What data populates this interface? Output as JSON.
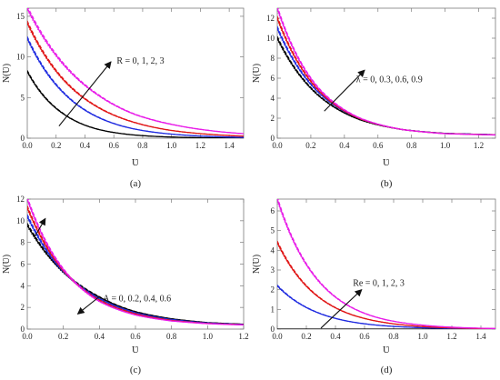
{
  "figure": {
    "colors": {
      "black": "#000000",
      "blue": "#1f2be0",
      "red": "#e01515",
      "magenta": "#e81ce8",
      "arrow": "#111111"
    }
  },
  "chart_data": [
    {
      "type": "line",
      "panel": "a",
      "caption": "(a)",
      "xlabel": "Ʋ",
      "ylabel": "N(Ʋ)",
      "xlim": [
        0,
        1.5
      ],
      "ylim": [
        0,
        16
      ],
      "xticks": [
        0.0,
        0.2,
        0.4,
        0.6,
        0.8,
        1.0,
        1.2,
        1.4
      ],
      "xtick_labels": [
        "0.0",
        "0.2",
        "0.4",
        "0.6",
        "0.8",
        "1.0",
        "1.2",
        "1.4"
      ],
      "yticks": [
        0,
        5,
        10,
        15
      ],
      "ytick_labels": [
        "0",
        "5",
        "10",
        "15"
      ],
      "annotation": "R = 0, 1, 2, 3",
      "arrow": {
        "from": [
          0.22,
          1.5
        ],
        "to": [
          0.58,
          9.4
        ]
      },
      "annotation_pos": [
        0.62,
        9.2
      ],
      "decay": [
        4.1,
        3.2,
        2.7,
        2.25
      ],
      "series": [
        {
          "color": "black",
          "x": [
            0,
            0.25,
            0.5,
            0.75,
            1.0,
            1.25,
            1.5
          ],
          "values": [
            8.2,
            3.0,
            1.05,
            0.38,
            0.14,
            0.05,
            0.02
          ]
        },
        {
          "color": "blue",
          "x": [
            0,
            0.25,
            0.5,
            0.75,
            1.0,
            1.25,
            1.5
          ],
          "values": [
            12.3,
            5.6,
            2.5,
            1.1,
            0.5,
            0.23,
            0.1
          ]
        },
        {
          "color": "red",
          "x": [
            0,
            0.25,
            0.5,
            0.75,
            1.0,
            1.25,
            1.5
          ],
          "values": [
            14.2,
            7.2,
            3.7,
            1.9,
            0.95,
            0.49,
            0.25
          ]
        },
        {
          "color": "magenta",
          "x": [
            0,
            0.25,
            0.5,
            0.75,
            1.0,
            1.25,
            1.5
          ],
          "values": [
            16.0,
            9.1,
            5.2,
            2.9,
            1.7,
            0.97,
            0.55
          ]
        }
      ]
    },
    {
      "type": "line",
      "panel": "b",
      "caption": "(b)",
      "xlabel": "Ʋ",
      "ylabel": "N(Ʋ)",
      "xlim": [
        0,
        1.3
      ],
      "ylim": [
        0,
        13
      ],
      "xticks": [
        0.0,
        0.2,
        0.4,
        0.6,
        0.8,
        1.0,
        1.2
      ],
      "xtick_labels": [
        "0.0",
        "0.2",
        "0.4",
        "0.6",
        "0.8",
        "1.0",
        "1.2"
      ],
      "yticks": [
        0,
        2,
        4,
        6,
        8,
        10,
        12
      ],
      "ytick_labels": [
        "0",
        "2",
        "4",
        "6",
        "8",
        "10",
        "12"
      ],
      "annotation": "λ = 0, 0.3, 0.6, 0.9",
      "arrow": {
        "from": [
          0.28,
          2.7
        ],
        "to": [
          0.52,
          6.8
        ]
      },
      "annotation_pos": [
        0.47,
        5.6
      ],
      "floor": 0.3,
      "decay": [
        3.6,
        3.85,
        4.05,
        4.25
      ],
      "series": [
        {
          "color": "black",
          "x": [
            0,
            0.25,
            0.5,
            0.75,
            1.0,
            1.3
          ],
          "values": [
            10.0,
            4.2,
            1.8,
            0.85,
            0.48,
            0.35
          ]
        },
        {
          "color": "blue",
          "x": [
            0,
            0.25,
            0.5,
            0.75,
            1.0,
            1.3
          ],
          "values": [
            11.0,
            4.5,
            1.9,
            0.85,
            0.47,
            0.34
          ]
        },
        {
          "color": "red",
          "x": [
            0,
            0.25,
            0.5,
            0.75,
            1.0,
            1.3
          ],
          "values": [
            12.0,
            4.7,
            1.9,
            0.85,
            0.46,
            0.33
          ]
        },
        {
          "color": "magenta",
          "x": [
            0,
            0.25,
            0.5,
            0.75,
            1.0,
            1.3
          ],
          "values": [
            13.0,
            4.9,
            1.95,
            0.85,
            0.45,
            0.32
          ]
        }
      ]
    },
    {
      "type": "line",
      "panel": "c",
      "caption": "(c)",
      "xlabel": "Ʋ",
      "ylabel": "N(Ʋ)",
      "xlim": [
        0,
        1.2
      ],
      "ylim": [
        0,
        12
      ],
      "xticks": [
        0.0,
        0.2,
        0.4,
        0.6,
        0.8,
        1.0,
        1.2
      ],
      "xtick_labels": [
        "0.0",
        "0.2",
        "0.4",
        "0.6",
        "0.8",
        "1.0",
        "1.2"
      ],
      "yticks": [
        0,
        2,
        4,
        6,
        8,
        10,
        12
      ],
      "ytick_labels": [
        "0",
        "2",
        "4",
        "6",
        "8",
        "10",
        "12"
      ],
      "annotation": "A = 0, 0.2, 0.4, 0.6",
      "arrows": [
        {
          "from": [
            0.04,
            8.5
          ],
          "to": [
            0.1,
            10.2
          ]
        },
        {
          "from": [
            0.4,
            3.0
          ],
          "to": [
            0.28,
            1.4
          ]
        }
      ],
      "annotation_pos": [
        0.42,
        2.55
      ],
      "floor": 0.3,
      "decay": [
        3.1,
        3.4,
        3.7,
        4.0
      ],
      "series": [
        {
          "color": "black",
          "x": [
            0,
            0.2,
            0.4,
            0.6,
            0.8,
            1.0,
            1.2
          ],
          "values": [
            9.6,
            5.25,
            2.95,
            1.6,
            0.95,
            0.6,
            0.45
          ]
        },
        {
          "color": "blue",
          "x": [
            0,
            0.2,
            0.4,
            0.6,
            0.8,
            1.0,
            1.2
          ],
          "values": [
            10.4,
            5.3,
            2.8,
            1.5,
            0.88,
            0.56,
            0.42
          ]
        },
        {
          "color": "red",
          "x": [
            0,
            0.2,
            0.4,
            0.6,
            0.8,
            1.0,
            1.2
          ],
          "values": [
            11.2,
            5.4,
            2.65,
            1.4,
            0.8,
            0.52,
            0.4
          ]
        },
        {
          "color": "magenta",
          "x": [
            0,
            0.2,
            0.4,
            0.6,
            0.8,
            1.0,
            1.2
          ],
          "values": [
            12.0,
            5.5,
            2.55,
            1.3,
            0.75,
            0.5,
            0.38
          ]
        }
      ]
    },
    {
      "type": "line",
      "panel": "d",
      "caption": "(d)",
      "xlabel": "Ʋ",
      "ylabel": "N(Ʋ)",
      "xlim": [
        0,
        1.5
      ],
      "ylim": [
        0,
        6.6
      ],
      "xticks": [
        0.0,
        0.2,
        0.4,
        0.6,
        0.8,
        1.0,
        1.2,
        1.4
      ],
      "xtick_labels": [
        "0.0",
        "0.2",
        "0.4",
        "0.6",
        "0.8",
        "1.0",
        "1.2",
        "1.4"
      ],
      "yticks": [
        0,
        1,
        2,
        3,
        4,
        5,
        6
      ],
      "ytick_labels": [
        "0",
        "1",
        "2",
        "3",
        "4",
        "5",
        "6"
      ],
      "annotation": "Re = 0, 1, 2, 3",
      "arrow": {
        "from": [
          0.3,
          0.05
        ],
        "to": [
          0.58,
          2.0
        ]
      },
      "annotation_pos": [
        0.52,
        2.2
      ],
      "decay": [
        1.0,
        3.5,
        3.5,
        3.5
      ],
      "series": [
        {
          "color": "black",
          "x": [
            0,
            0.5,
            1.0,
            1.5
          ],
          "values": [
            0.0,
            0.0,
            0.0,
            0.0
          ]
        },
        {
          "color": "blue",
          "x": [
            0,
            0.25,
            0.5,
            0.75,
            1.0,
            1.25,
            1.5
          ],
          "values": [
            2.2,
            0.92,
            0.38,
            0.16,
            0.07,
            0.03,
            0.01
          ]
        },
        {
          "color": "red",
          "x": [
            0,
            0.25,
            0.5,
            0.75,
            1.0,
            1.25,
            1.5
          ],
          "values": [
            4.4,
            1.83,
            0.76,
            0.32,
            0.13,
            0.05,
            0.02
          ]
        },
        {
          "color": "magenta",
          "x": [
            0,
            0.25,
            0.5,
            0.75,
            1.0,
            1.25,
            1.5
          ],
          "values": [
            6.6,
            2.75,
            1.14,
            0.47,
            0.2,
            0.08,
            0.03
          ]
        }
      ]
    }
  ]
}
